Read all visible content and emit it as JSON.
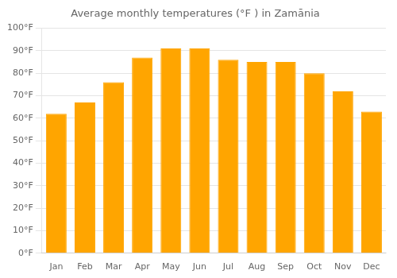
{
  "chart_data": {
    "type": "bar",
    "title": "Average monthly temperatures (°F ) in Zamānia",
    "categories": [
      "Jan",
      "Feb",
      "Mar",
      "Apr",
      "May",
      "Jun",
      "Jul",
      "Aug",
      "Sep",
      "Oct",
      "Nov",
      "Dec"
    ],
    "values": [
      62,
      67,
      76,
      87,
      91,
      91,
      86,
      85,
      85,
      80,
      72,
      63
    ],
    "color": "#FFA500",
    "ylim": [
      0,
      100
    ],
    "yticks": [
      {
        "value": 0,
        "label": "0°F"
      },
      {
        "value": 10,
        "label": "10°F"
      },
      {
        "value": 20,
        "label": "20°F"
      },
      {
        "value": 30,
        "label": "30°F"
      },
      {
        "value": 40,
        "label": "40°F"
      },
      {
        "value": 50,
        "label": "50°F"
      },
      {
        "value": 60,
        "label": "60°F"
      },
      {
        "value": 70,
        "label": "70°F"
      },
      {
        "value": 80,
        "label": "80°F"
      },
      {
        "value": 90,
        "label": "90°F"
      },
      {
        "value": 100,
        "label": "100°F"
      }
    ],
    "grid": true
  }
}
